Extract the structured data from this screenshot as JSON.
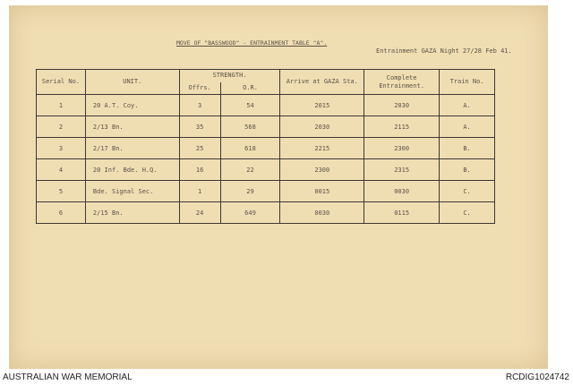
{
  "document": {
    "title": "MOVE OF \"BASSWOOD\" - ENTRAINMENT TABLE \"A\".",
    "subtitle": "Entrainment GAZA Night 27/28 Feb 41.",
    "headers": {
      "serial": "Serial No.",
      "unit": "UNIT.",
      "strength": "STRENGTH.",
      "offrs": "Offrs.",
      "or": "O.R.",
      "arrive": "Arrive at GAZA Sta.",
      "complete": "Complete Entrainment.",
      "train": "Train No."
    },
    "rows": [
      {
        "serial": "1",
        "unit": "20 A.T. Coy.",
        "offrs": "3",
        "or": "54",
        "arrive": "2015",
        "complete": "2030",
        "train": "A."
      },
      {
        "serial": "2",
        "unit": "2/13 Bn.",
        "offrs": "35",
        "or": "568",
        "arrive": "2030",
        "complete": "2115",
        "train": "A."
      },
      {
        "serial": "3",
        "unit": "2/17 Bn.",
        "offrs": "25",
        "or": "618",
        "arrive": "2215",
        "complete": "2300",
        "train": "B."
      },
      {
        "serial": "4",
        "unit": "20 Inf. Bde. H.Q.",
        "offrs": "16",
        "or": "22",
        "arrive": "2300",
        "complete": "2315",
        "train": "B."
      },
      {
        "serial": "5",
        "unit": "Bde. Signal Sec.",
        "offrs": "1",
        "or": "29",
        "arrive": "0015",
        "complete": "0030",
        "train": "C."
      },
      {
        "serial": "6",
        "unit": "2/15 Bn.",
        "offrs": "24",
        "or": "649",
        "arrive": "0030",
        "complete": "0115",
        "train": "C."
      }
    ]
  },
  "footer": {
    "left": "AUSTRALIAN WAR MEMORIAL",
    "right": "RCDIG1024742"
  }
}
